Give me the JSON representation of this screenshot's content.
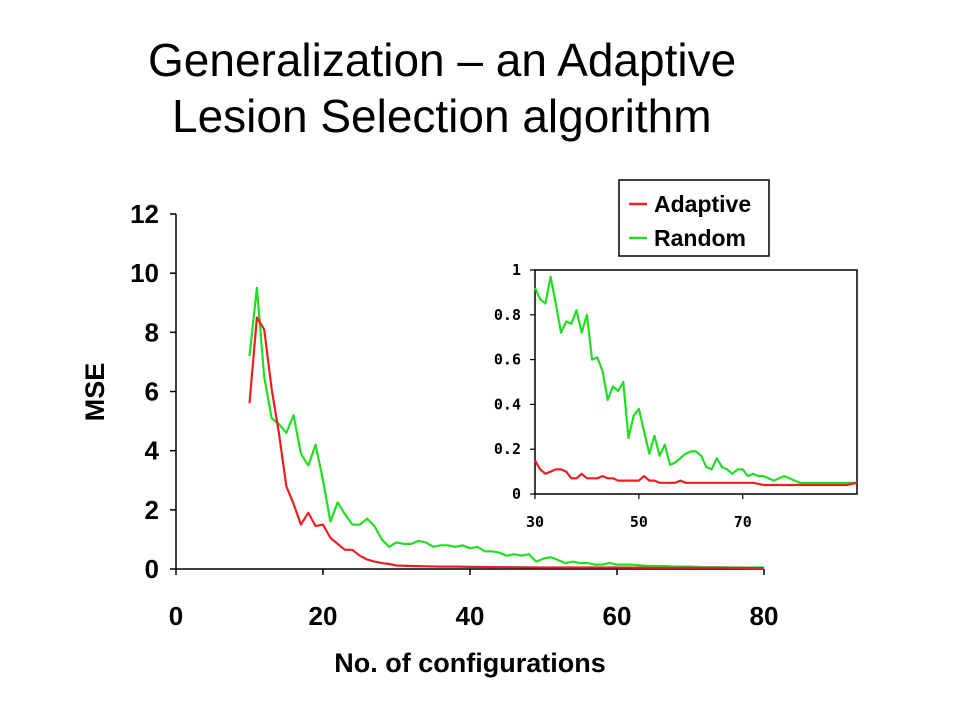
{
  "title": {
    "line1": "Generalization – an Adaptive",
    "line2": "Lesion Selection algorithm"
  },
  "colors": {
    "adaptive": "#e82020",
    "random": "#22dd22",
    "axis": "#000000"
  },
  "chart_data": [
    {
      "type": "line",
      "title": "",
      "xlabel": "No. of configurations",
      "ylabel": "MSE",
      "xlim": [
        0,
        80
      ],
      "ylim": [
        0,
        12
      ],
      "xticks": [
        0,
        20,
        40,
        60,
        80
      ],
      "yticks": [
        0,
        2,
        4,
        6,
        8,
        10,
        12
      ],
      "xtick_labels": [
        "0",
        "20",
        "40",
        "60",
        "80"
      ],
      "ytick_labels": [
        "0",
        "2",
        "4",
        "6",
        "8",
        "10",
        "12"
      ],
      "grid": false,
      "legend": "top-right",
      "series": [
        {
          "name": "Adaptive",
          "x": [
            10,
            11,
            12,
            13,
            14,
            15,
            16,
            17,
            18,
            19,
            20,
            21,
            22,
            23,
            24,
            25,
            26,
            27,
            28,
            29,
            30,
            32,
            34,
            36,
            38,
            40,
            45,
            50,
            55,
            60,
            65,
            70,
            75,
            80
          ],
          "y": [
            5.6,
            8.5,
            8.1,
            6.1,
            4.6,
            2.8,
            2.2,
            1.5,
            1.9,
            1.45,
            1.5,
            1.05,
            0.85,
            0.65,
            0.65,
            0.45,
            0.32,
            0.25,
            0.2,
            0.17,
            0.12,
            0.1,
            0.09,
            0.08,
            0.08,
            0.07,
            0.06,
            0.05,
            0.05,
            0.05,
            0.04,
            0.04,
            0.04,
            0.03
          ]
        },
        {
          "name": "Random",
          "x": [
            10,
            11,
            12,
            13,
            14,
            15,
            16,
            17,
            18,
            19,
            20,
            21,
            22,
            23,
            24,
            25,
            26,
            27,
            28,
            29,
            30,
            31,
            32,
            33,
            34,
            35,
            36,
            37,
            38,
            39,
            40,
            41,
            42,
            43,
            44,
            45,
            46,
            47,
            48,
            49,
            50,
            51,
            52,
            53,
            54,
            55,
            56,
            57,
            58,
            59,
            60,
            62,
            64,
            66,
            68,
            70,
            72,
            74,
            76,
            78,
            80
          ],
          "y": [
            7.2,
            9.5,
            6.5,
            5.1,
            4.9,
            4.6,
            5.2,
            3.9,
            3.5,
            4.2,
            3.0,
            1.6,
            2.25,
            1.85,
            1.5,
            1.5,
            1.7,
            1.45,
            1.0,
            0.75,
            0.9,
            0.85,
            0.85,
            0.95,
            0.9,
            0.75,
            0.8,
            0.8,
            0.75,
            0.8,
            0.7,
            0.75,
            0.6,
            0.6,
            0.55,
            0.45,
            0.5,
            0.45,
            0.5,
            0.25,
            0.35,
            0.4,
            0.3,
            0.2,
            0.25,
            0.2,
            0.2,
            0.15,
            0.15,
            0.2,
            0.15,
            0.15,
            0.1,
            0.1,
            0.08,
            0.08,
            0.06,
            0.06,
            0.05,
            0.05,
            0.05
          ]
        }
      ]
    },
    {
      "type": "line",
      "title": "",
      "xlabel": "",
      "ylabel": "",
      "xlim": [
        30,
        92
      ],
      "ylim": [
        0,
        1
      ],
      "xticks": [
        30,
        50,
        70
      ],
      "yticks": [
        0,
        0.2,
        0.4,
        0.6,
        0.8,
        1
      ],
      "xtick_labels": [
        "30",
        "50",
        "70"
      ],
      "ytick_labels": [
        "0",
        "0.2",
        "0.4",
        "0.6",
        "0.8",
        "1"
      ],
      "grid": false,
      "series": [
        {
          "name": "Adaptive",
          "x": [
            30,
            31,
            32,
            33,
            34,
            35,
            36,
            37,
            38,
            39,
            40,
            41,
            42,
            43,
            44,
            45,
            46,
            47,
            48,
            49,
            50,
            51,
            52,
            53,
            54,
            55,
            56,
            57,
            58,
            59,
            60,
            62,
            64,
            66,
            68,
            70,
            72,
            74,
            76,
            78,
            80,
            82,
            84,
            86,
            88,
            90,
            92
          ],
          "y": [
            0.15,
            0.11,
            0.09,
            0.1,
            0.11,
            0.11,
            0.1,
            0.07,
            0.07,
            0.09,
            0.07,
            0.07,
            0.07,
            0.08,
            0.07,
            0.07,
            0.06,
            0.06,
            0.06,
            0.06,
            0.06,
            0.08,
            0.06,
            0.06,
            0.05,
            0.05,
            0.05,
            0.05,
            0.06,
            0.05,
            0.05,
            0.05,
            0.05,
            0.05,
            0.05,
            0.05,
            0.05,
            0.04,
            0.04,
            0.04,
            0.04,
            0.04,
            0.04,
            0.04,
            0.04,
            0.04,
            0.05
          ]
        },
        {
          "name": "Random",
          "x": [
            30,
            31,
            32,
            33,
            34,
            35,
            36,
            37,
            38,
            39,
            40,
            41,
            42,
            43,
            44,
            45,
            46,
            47,
            48,
            49,
            50,
            51,
            52,
            53,
            54,
            55,
            56,
            57,
            58,
            59,
            60,
            61,
            62,
            63,
            64,
            65,
            66,
            67,
            68,
            69,
            70,
            71,
            72,
            73,
            74,
            75,
            76,
            77,
            78,
            79,
            80,
            81,
            82,
            83,
            84,
            85,
            86,
            87,
            88,
            89,
            90,
            91,
            92
          ],
          "y": [
            0.92,
            0.87,
            0.85,
            0.97,
            0.85,
            0.72,
            0.77,
            0.76,
            0.82,
            0.72,
            0.8,
            0.6,
            0.61,
            0.55,
            0.42,
            0.48,
            0.46,
            0.5,
            0.25,
            0.35,
            0.38,
            0.28,
            0.18,
            0.26,
            0.17,
            0.22,
            0.13,
            0.14,
            0.16,
            0.18,
            0.19,
            0.19,
            0.17,
            0.12,
            0.11,
            0.16,
            0.12,
            0.11,
            0.09,
            0.11,
            0.11,
            0.08,
            0.09,
            0.08,
            0.08,
            0.07,
            0.06,
            0.07,
            0.08,
            0.07,
            0.06,
            0.05,
            0.05,
            0.05,
            0.05,
            0.05,
            0.05,
            0.05,
            0.05,
            0.05,
            0.05,
            0.05,
            0.05
          ]
        }
      ]
    }
  ]
}
